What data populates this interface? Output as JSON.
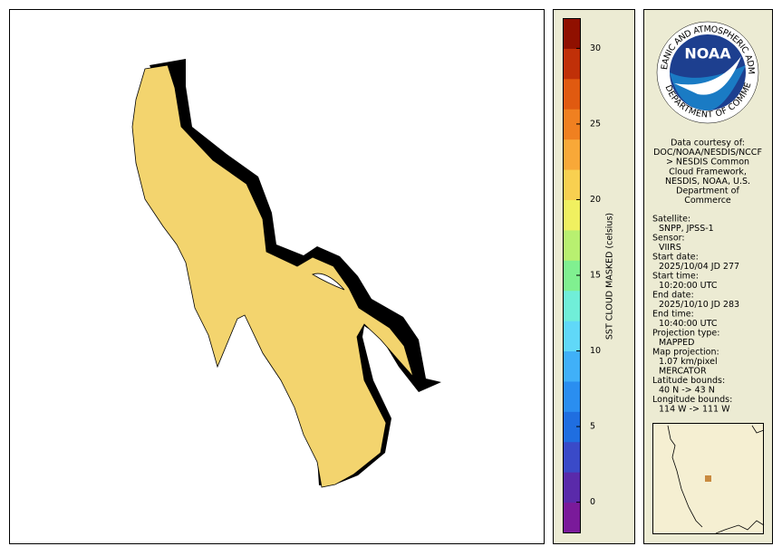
{
  "colorbar": {
    "label": "SST CLOUD MASKED (celsius)",
    "range": [
      -2,
      32
    ],
    "ticks": [
      0,
      5,
      10,
      15,
      20,
      25,
      30
    ],
    "colors": [
      "#7a1a9a",
      "#5a2aaa",
      "#3a4ac8",
      "#1f6ee0",
      "#2a8ef0",
      "#40b0f8",
      "#60d8f8",
      "#70eed8",
      "#80f090",
      "#b8f070",
      "#f0f060",
      "#f8d050",
      "#f8a838",
      "#f08020",
      "#e05a10",
      "#c03008",
      "#901000"
    ]
  },
  "credit": {
    "logo_text": "NOAA",
    "logo_ring_top": "NATIONAL OCEANIC AND ATMOSPHERIC ADMINISTRATION",
    "logo_ring_bottom": "U.S. DEPARTMENT OF COMMERCE",
    "lines": [
      "Data courtesy of:",
      "DOC/NOAA/NESDIS/NCCF",
      "> NESDIS Common",
      "Cloud Framework,",
      "NESDIS, NOAA, U.S.",
      "Department of",
      "Commerce"
    ]
  },
  "metadata": [
    {
      "label": "Satellite:",
      "value": "SNPP, JPSS-1"
    },
    {
      "label": "Sensor:",
      "value": "VIIRS"
    },
    {
      "label": "Start date:",
      "value": "2025/10/04 JD 277"
    },
    {
      "label": "Start time:",
      "value": "10:20:00 UTC"
    },
    {
      "label": "End date:",
      "value": "2025/10/10 JD 283"
    },
    {
      "label": "End time:",
      "value": "10:40:00 UTC"
    },
    {
      "label": "Projection type:",
      "value": "MAPPED"
    },
    {
      "label": "Map projection:",
      "value": "1.07 km/pixel"
    },
    {
      "label": "",
      "value": "MERCATOR"
    },
    {
      "label": "Latitude bounds:",
      "value": "40 N -> 43 N"
    },
    {
      "label": "Longitude bounds:",
      "value": "114 W -> 111 W"
    }
  ]
}
